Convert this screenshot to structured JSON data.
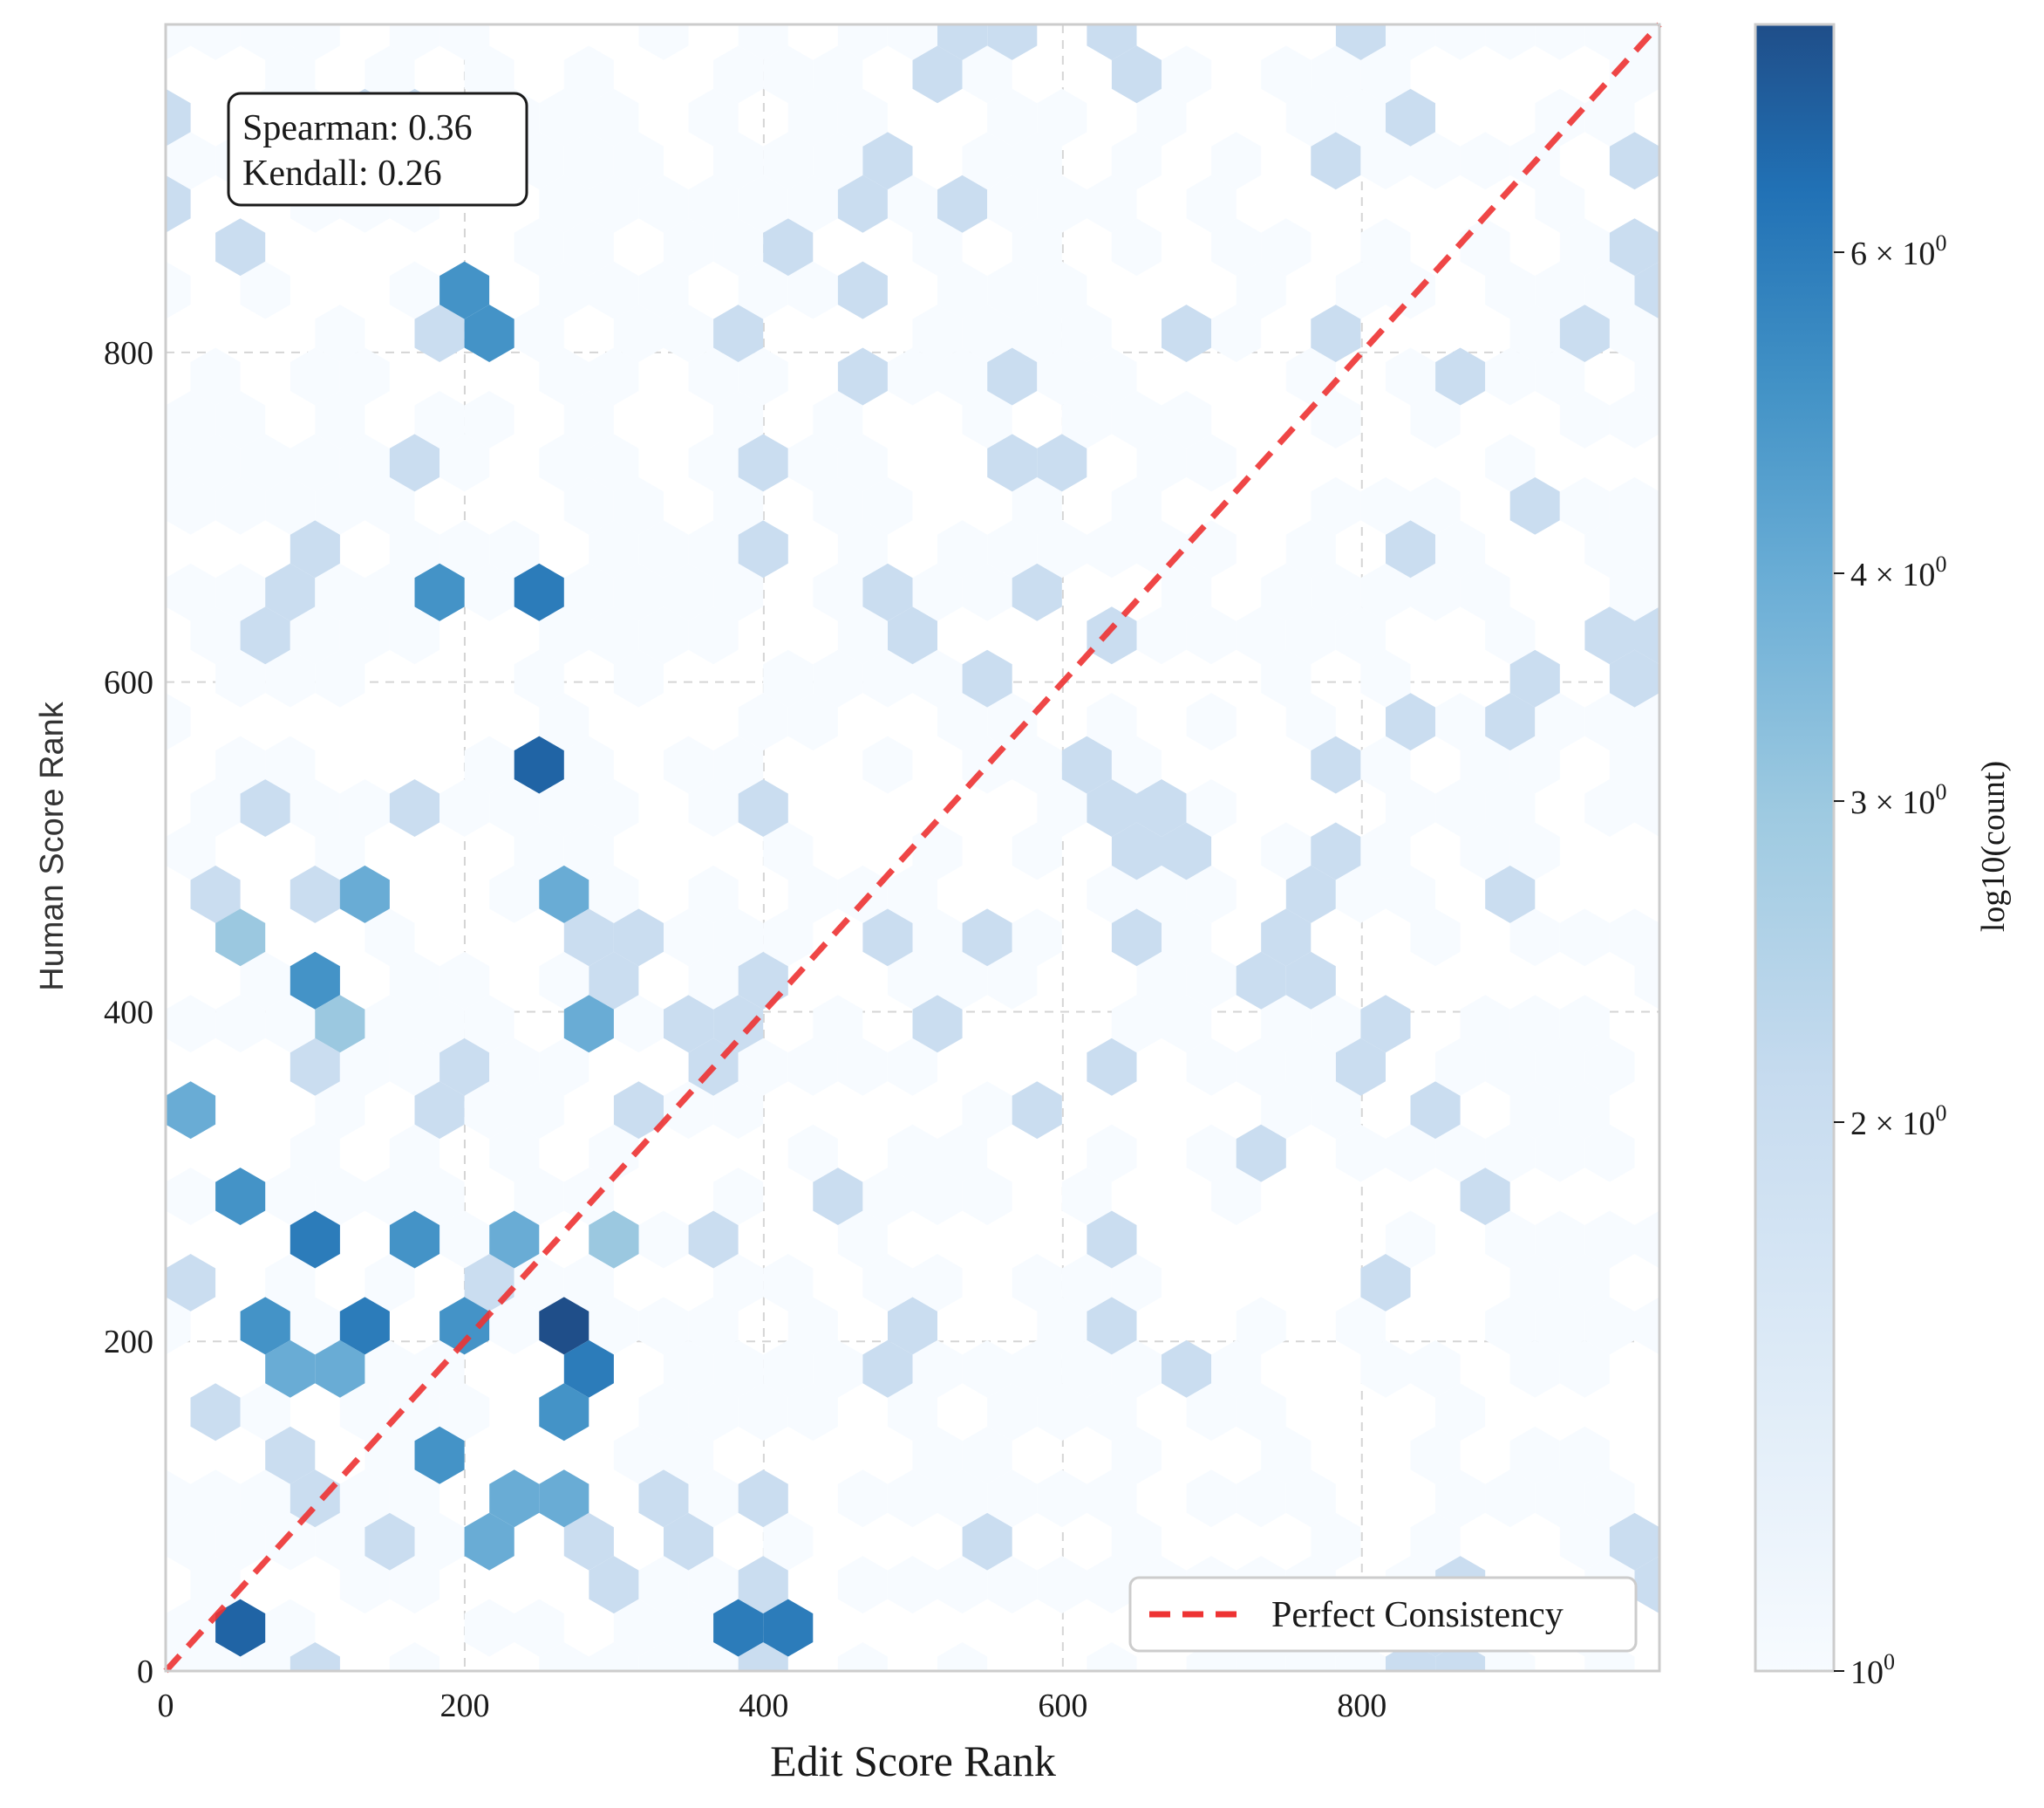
{
  "chart_data": {
    "type": "hexbin",
    "title": "",
    "xlabel": "Edit Score Rank",
    "ylabel": "Human Score Rank",
    "xlim": [
      0,
      999
    ],
    "ylim": [
      0,
      999
    ],
    "x_ticks": [
      0,
      200,
      400,
      600,
      800
    ],
    "y_ticks": [
      0,
      200,
      400,
      600,
      800
    ],
    "grid": true,
    "colormap": "Blues",
    "colorbar": {
      "label": "log10(count)",
      "scale": "log",
      "range": [
        1,
        8
      ],
      "ticks": [
        {
          "value": 1,
          "base": "10",
          "exp": "0"
        },
        {
          "value": 2,
          "base": "2 × 10",
          "exp": "0"
        },
        {
          "value": 3,
          "base": "3 × 10",
          "exp": "0"
        },
        {
          "value": 4,
          "base": "4 × 10",
          "exp": "0"
        },
        {
          "value": 6,
          "base": "6 × 10",
          "exp": "0"
        }
      ]
    },
    "annotation": {
      "spearman": "Spearman: 0.36",
      "kendall": "Kendall: 0.26"
    },
    "reference_line": {
      "name": "Perfect Consistency",
      "from": [
        0,
        0
      ],
      "to": [
        999,
        999
      ],
      "color": "#ee3333",
      "style": "dashed"
    },
    "legend": {
      "entries": [
        "Perfect Consistency"
      ],
      "placement": "lower-right"
    },
    "hex_bin_columns": 30,
    "bins": [
      [
        260,
        200,
        8
      ],
      [
        285,
        180,
        6
      ],
      [
        380,
        20,
        6
      ],
      [
        410,
        20,
        6
      ],
      [
        240,
        540,
        7
      ],
      [
        265,
        650,
        6
      ],
      [
        140,
        205,
        6
      ],
      [
        100,
        265,
        6
      ],
      [
        255,
        165,
        5
      ],
      [
        180,
        140,
        5
      ],
      [
        170,
        265,
        5
      ],
      [
        205,
        215,
        5
      ],
      [
        190,
        830,
        5
      ],
      [
        200,
        810,
        5
      ],
      [
        170,
        660,
        5
      ],
      [
        170,
        660,
        5
      ],
      [
        105,
        425,
        5
      ],
      [
        120,
        475,
        4
      ],
      [
        260,
        475,
        4
      ],
      [
        220,
        260,
        4
      ],
      [
        40,
        20,
        7
      ],
      [
        35,
        300,
        5
      ],
      [
        30,
        345,
        4
      ],
      [
        65,
        210,
        5
      ],
      [
        70,
        190,
        4
      ],
      [
        130,
        185,
        4
      ],
      [
        215,
        90,
        4
      ],
      [
        235,
        110,
        4
      ],
      [
        250,
        100,
        4
      ],
      [
        280,
        400,
        4
      ],
      [
        285,
        260,
        4
      ],
      [
        300,
        250,
        3
      ],
      [
        60,
        445,
        3
      ],
      [
        100,
        390,
        3
      ]
    ]
  }
}
